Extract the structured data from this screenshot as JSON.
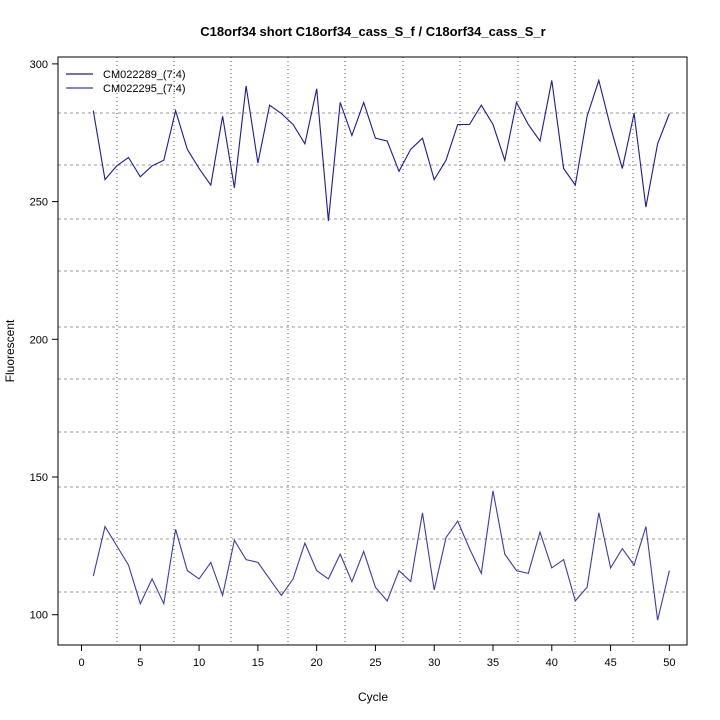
{
  "chart_data": {
    "type": "line",
    "title": "C18orf34 short C18orf34_cass_S_f / C18orf34_cass_S_r",
    "xlabel": "Cycle",
    "ylabel": "Fluorescent",
    "xlim": [
      -2,
      51.5
    ],
    "ylim": [
      89,
      302.5
    ],
    "xticks": [
      0,
      5,
      10,
      15,
      20,
      25,
      30,
      35,
      40,
      45,
      50
    ],
    "yticks": [
      100,
      150,
      200,
      250,
      300
    ],
    "grid": true,
    "legend_position": "top-left",
    "x": [
      1,
      2,
      3,
      4,
      5,
      6,
      7,
      8,
      9,
      10,
      11,
      12,
      13,
      14,
      15,
      16,
      17,
      18,
      19,
      20,
      21,
      22,
      23,
      24,
      25,
      26,
      27,
      28,
      29,
      30,
      31,
      32,
      33,
      34,
      35,
      36,
      37,
      38,
      39,
      40,
      41,
      42,
      43,
      44,
      45,
      46,
      47,
      48,
      49,
      50
    ],
    "series": [
      {
        "name": "CM022289_(7:4)",
        "color": "#1a1aa0",
        "values": [
          283,
          258,
          263,
          266,
          259,
          263,
          265,
          283,
          269,
          262,
          256,
          281,
          255,
          292,
          264,
          285,
          282,
          278,
          271,
          291,
          243,
          286,
          274,
          286,
          273,
          272,
          261,
          269,
          273,
          258,
          265,
          278,
          278,
          285,
          278,
          265,
          286,
          278,
          272,
          294,
          262,
          256,
          281,
          294,
          277,
          262,
          282,
          248,
          271,
          282
        ]
      },
      {
        "name": "CM022295_(7:4)",
        "color": "#3a3ab0",
        "values": [
          114,
          132,
          125,
          118,
          104,
          113,
          104,
          131,
          116,
          113,
          119,
          107,
          127,
          120,
          119,
          113,
          107,
          113,
          126,
          116,
          113,
          122,
          112,
          123,
          110,
          105,
          116,
          112,
          137,
          109,
          128,
          134,
          124,
          115,
          145,
          122,
          116,
          115,
          130,
          117,
          120,
          105,
          110,
          137,
          117,
          124,
          118,
          132,
          98,
          116
        ]
      }
    ]
  }
}
